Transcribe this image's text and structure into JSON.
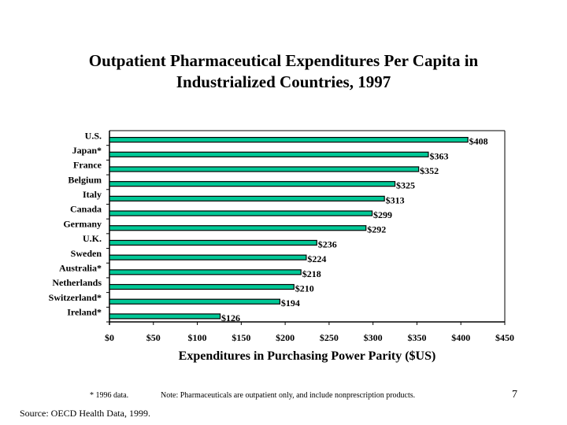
{
  "chart_data": {
    "type": "bar",
    "orientation": "horizontal",
    "title": "Outpatient Pharmaceutical Expenditures Per Capita in Industrialized Countries, 1997",
    "title_lines": [
      "Outpatient Pharmaceutical Expenditures Per Capita in",
      "Industrialized Countries, 1997"
    ],
    "xlabel": "Expenditures in Purchasing Power Parity ($US)",
    "ylabel": "",
    "categories": [
      "U.S.",
      "Japan*",
      "France",
      "Belgium",
      "Italy",
      "Canada",
      "Germany",
      "U.K.",
      "Sweden",
      "Australia*",
      "Netherlands",
      "Switzerland*",
      "Ireland*"
    ],
    "values": [
      408,
      363,
      352,
      325,
      313,
      299,
      292,
      236,
      224,
      218,
      210,
      194,
      126
    ],
    "value_labels": [
      "$408",
      "$363",
      "$352",
      "$325",
      "$313",
      "$299",
      "$292",
      "$236",
      "$224",
      "$218",
      "$210",
      "$194",
      "$126"
    ],
    "xlim": [
      0,
      450
    ],
    "xticks": [
      0,
      50,
      100,
      150,
      200,
      250,
      300,
      350,
      400,
      450
    ],
    "xtick_labels": [
      "$0",
      "$50",
      "$100",
      "$150",
      "$200",
      "$250",
      "$300",
      "$350",
      "$400",
      "$450"
    ],
    "grid": false,
    "legend": "none",
    "bar_color": "#00C896",
    "bar_edge_color": "#000000"
  },
  "footnotes": {
    "star_note": "* 1996 data.",
    "note": "Note: Pharmaceuticals are outpatient only, and include nonprescription products.",
    "source": "Source: OECD Health Data, 1999."
  },
  "page_number": "7"
}
